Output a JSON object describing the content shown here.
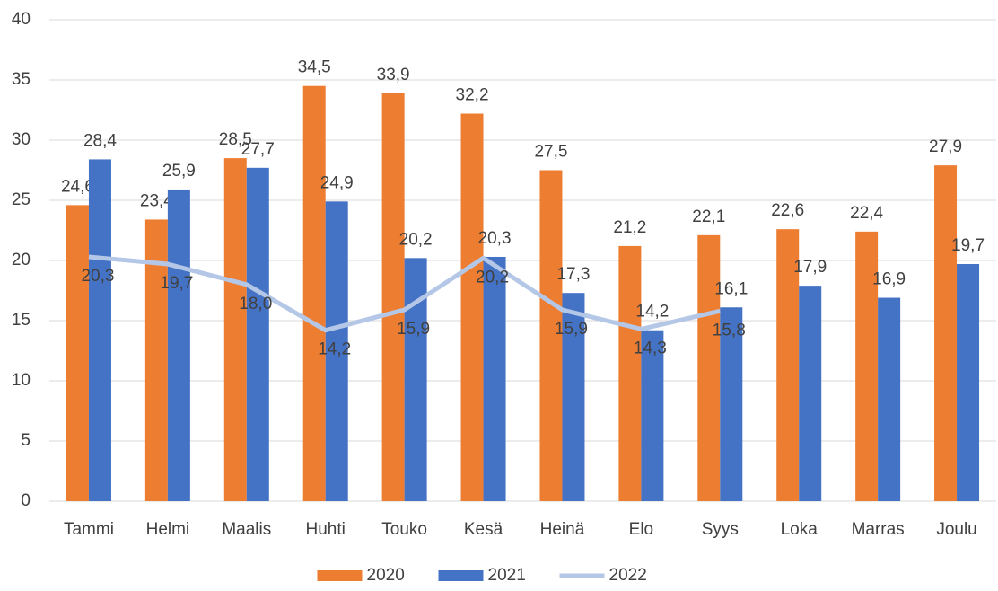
{
  "chart_data": {
    "type": "bar",
    "categories": [
      "Tammi",
      "Helmi",
      "Maalis",
      "Huhti",
      "Touko",
      "Kesä",
      "Heinä",
      "Elo",
      "Syys",
      "Loka",
      "Marras",
      "Joulu"
    ],
    "series": [
      {
        "name": "2020",
        "type": "bar",
        "color": "#ed7d31",
        "values": [
          24.6,
          23.4,
          28.5,
          34.5,
          33.9,
          32.2,
          27.5,
          21.2,
          22.1,
          22.6,
          22.4,
          27.9
        ],
        "value_labels": [
          "24,6",
          "23,4",
          "28,5",
          "34,5",
          "33,9",
          "32,2",
          "27,5",
          "21,2",
          "22,1",
          "22,6",
          "22,4",
          "27,9"
        ]
      },
      {
        "name": "2021",
        "type": "bar",
        "color": "#4472c4",
        "values": [
          28.4,
          25.9,
          27.7,
          24.9,
          20.2,
          20.3,
          17.3,
          14.2,
          16.1,
          17.9,
          16.9,
          19.7
        ],
        "value_labels": [
          "28,4",
          "25,9",
          "27,7",
          "24,9",
          "20,2",
          "20,3",
          "17,3",
          "14,2",
          "16,1",
          "17,9",
          "16,9",
          "19,7"
        ]
      },
      {
        "name": "2022",
        "type": "line",
        "color": "#b4c7e7",
        "values": [
          20.3,
          19.7,
          18.0,
          14.2,
          15.9,
          20.2,
          15.9,
          14.3,
          15.8,
          null,
          null,
          null
        ],
        "value_labels": [
          "20,3",
          "19,7",
          "18,0",
          "14,2",
          "15,9",
          "20,2",
          "15,9",
          "14,3",
          "15,8",
          null,
          null,
          null
        ]
      }
    ],
    "ylim": [
      0,
      40
    ],
    "yticks": [
      0,
      5,
      10,
      15,
      20,
      25,
      30,
      35,
      40
    ],
    "grid": true,
    "legend": "bottom"
  }
}
